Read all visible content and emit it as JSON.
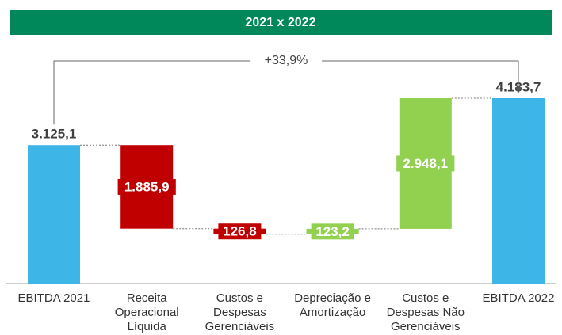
{
  "chart_data": {
    "type": "waterfall",
    "title": "2021 x 2022",
    "annotation": "+33,9%",
    "categories": [
      "EBITDA 2021",
      "Receita Operacional Líquida",
      "Custos e Despesas Gerenciáveis",
      "Depreciação e Amortização",
      "Custos e Despesas Não Gerenciáveis",
      "EBITDA 2022"
    ],
    "values": [
      3125.1,
      -1885.9,
      -126.8,
      123.2,
      2948.1,
      4183.7
    ],
    "value_labels": [
      "3.125,1",
      "1.885,9",
      "126,8",
      "123,2",
      "2.948,1",
      "4.183,7"
    ],
    "kinds": [
      "total",
      "change",
      "change",
      "change",
      "change",
      "total"
    ],
    "colors": {
      "total": "#3db5e6",
      "decrease": "#c00000",
      "increase": "#92d050"
    },
    "title_color": "#00875a"
  }
}
